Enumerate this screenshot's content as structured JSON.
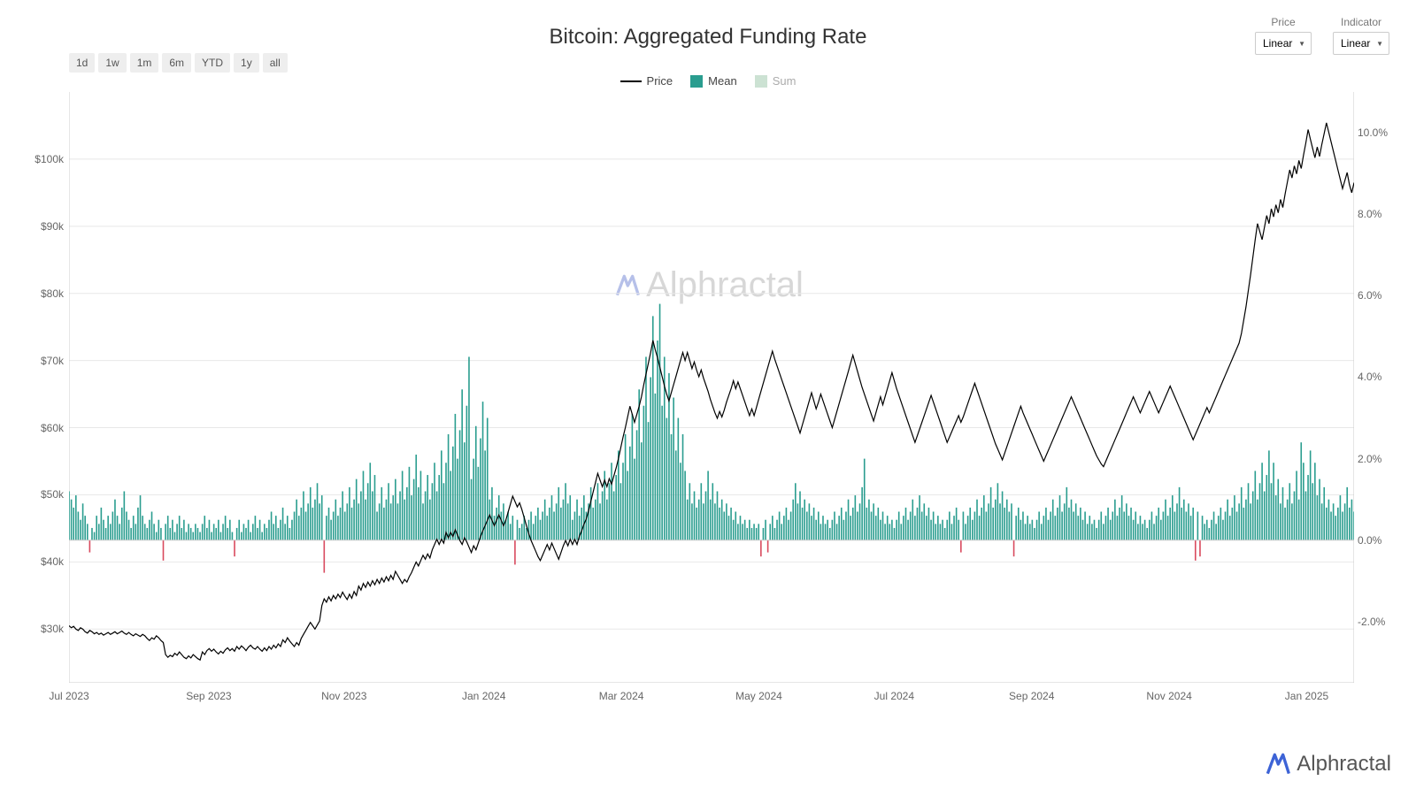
{
  "title": "Bitcoin: Aggregated Funding Rate",
  "controls": {
    "price_label": "Price",
    "indicator_label": "Indicator",
    "price_value": "Linear",
    "indicator_value": "Linear"
  },
  "range_buttons": [
    "1d",
    "1w",
    "1m",
    "6m",
    "YTD",
    "1y",
    "all"
  ],
  "legend": {
    "price": "Price",
    "mean": "Mean",
    "sum": "Sum"
  },
  "colors": {
    "price_line": "#000000",
    "mean_bar": "#2a9d8f",
    "sum_bar": "#8fbf9f",
    "neg_bar": "#d94a5e",
    "grid": "#e8e8e8",
    "axis": "#cccccc",
    "background": "#ffffff",
    "title_color": "#333333",
    "label_color": "#666666",
    "btn_bg": "#eeeeee",
    "watermark": "#b8b8b8",
    "logo_accent": "#3d63d6"
  },
  "chart": {
    "type": "combo-line-bar",
    "xlim": [
      0,
      570
    ],
    "x_tick_positions": [
      0,
      62,
      122,
      184,
      245,
      306,
      366,
      427,
      488,
      549
    ],
    "x_tick_labels": [
      "Jul 2023",
      "Sep 2023",
      "Nov 2023",
      "Jan 2024",
      "Mar 2024",
      "May 2024",
      "Jul 2024",
      "Sep 2024",
      "Nov 2024",
      "Jan 2025"
    ],
    "price": {
      "ylim": [
        22000,
        110000
      ],
      "ticks": [
        30000,
        40000,
        50000,
        60000,
        70000,
        80000,
        90000,
        100000
      ],
      "tick_labels": [
        "$30k",
        "$40k",
        "$50k",
        "$60k",
        "$70k",
        "$80k",
        "$90k",
        "$100k"
      ],
      "line_width": 1.2,
      "series": [
        30500,
        30200,
        30400,
        30000,
        29800,
        30200,
        30000,
        29600,
        29400,
        29800,
        29600,
        29300,
        29500,
        29200,
        29400,
        29100,
        29300,
        29500,
        29200,
        29400,
        29600,
        29300,
        29500,
        29700,
        29400,
        29200,
        29500,
        29200,
        29000,
        29300,
        29100,
        28900,
        29200,
        29000,
        28600,
        28300,
        28700,
        28500,
        29000,
        28700,
        28300,
        28000,
        26200,
        25800,
        26100,
        25900,
        26400,
        26100,
        26600,
        26200,
        25800,
        25600,
        26000,
        25700,
        26200,
        25900,
        25600,
        25400,
        26600,
        26200,
        26800,
        27100,
        26700,
        27000,
        26600,
        26300,
        26700,
        26400,
        26900,
        27200,
        26800,
        27100,
        26700,
        27400,
        27000,
        27500,
        27200,
        26800,
        27300,
        27600,
        27200,
        27000,
        27400,
        27000,
        26700,
        27200,
        26800,
        27400,
        27000,
        27600,
        27200,
        27800,
        27400,
        28400,
        28000,
        28700,
        28200,
        27800,
        27400,
        28000,
        27600,
        28600,
        29200,
        29800,
        30400,
        31000,
        30500,
        30000,
        30600,
        31200,
        33500,
        34500,
        34000,
        34800,
        34200,
        35000,
        34500,
        35200,
        34700,
        35500,
        34900,
        34400,
        35200,
        34600,
        35600,
        35000,
        36400,
        35800,
        36800,
        36200,
        37000,
        36400,
        37200,
        36600,
        37400,
        36800,
        37600,
        37000,
        37800,
        37200,
        38000,
        37400,
        38600,
        38000,
        37400,
        36800,
        37400,
        37000,
        37800,
        38400,
        39200,
        40000,
        39400,
        40200,
        41000,
        40400,
        41200,
        40600,
        41800,
        42600,
        43400,
        42600,
        43400,
        42800,
        44400,
        43600,
        44400,
        43800,
        44800,
        44000,
        43200,
        42600,
        43600,
        43000,
        42200,
        41400,
        42400,
        41800,
        42800,
        43800,
        44600,
        45400,
        46200,
        47000,
        46200,
        45400,
        46200,
        47000,
        46200,
        45400,
        46200,
        47400,
        48600,
        49800,
        49000,
        48200,
        48800,
        47800,
        46600,
        45400,
        44200,
        43200,
        42400,
        41600,
        40800,
        40200,
        41000,
        41800,
        42600,
        41800,
        42800,
        42000,
        41200,
        40400,
        41400,
        42400,
        43200,
        42400,
        43400,
        42600,
        43400,
        42600,
        43800,
        44600,
        45600,
        46400,
        47600,
        49000,
        50400,
        51800,
        53200,
        52200,
        51200,
        52200,
        51200,
        52400,
        51600,
        52800,
        54000,
        55400,
        57000,
        58600,
        60000,
        61600,
        63200,
        62000,
        60800,
        62000,
        63200,
        64600,
        66400,
        68000,
        69600,
        71200,
        73000,
        71600,
        70400,
        69000,
        67600,
        66200,
        65000,
        64000,
        65200,
        66400,
        67600,
        68800,
        70000,
        71200,
        70000,
        71200,
        70000,
        68800,
        69800,
        68600,
        67600,
        68600,
        67400,
        66400,
        65400,
        64200,
        63200,
        62200,
        61400,
        62400,
        61600,
        62600,
        63800,
        64800,
        65800,
        67000,
        65800,
        66800,
        65800,
        64800,
        63800,
        62800,
        61800,
        62800,
        61800,
        63000,
        64200,
        65400,
        66600,
        67800,
        69000,
        70200,
        71400,
        70200,
        69200,
        68200,
        67200,
        66200,
        65200,
        64200,
        63200,
        62200,
        61200,
        60200,
        59200,
        60400,
        61600,
        62800,
        64000,
        65200,
        64000,
        62800,
        63800,
        65000,
        64000,
        63000,
        62000,
        61000,
        60000,
        61200,
        62400,
        63600,
        64800,
        66000,
        67200,
        68400,
        69600,
        70800,
        69600,
        68400,
        67200,
        66000,
        65000,
        64000,
        63000,
        62000,
        61000,
        62200,
        63400,
        64600,
        63400,
        64600,
        65800,
        67000,
        68200,
        67000,
        65800,
        64800,
        63800,
        62800,
        61800,
        60800,
        59800,
        58800,
        57800,
        58800,
        59800,
        60800,
        61800,
        62800,
        63800,
        64800,
        63800,
        62800,
        61800,
        60800,
        59800,
        58800,
        57800,
        58600,
        59400,
        60200,
        61000,
        61800,
        60800,
        61600,
        62600,
        63600,
        64600,
        65600,
        66600,
        65600,
        64600,
        63600,
        62600,
        61600,
        60600,
        59600,
        58600,
        57600,
        56800,
        56000,
        55200,
        56200,
        57200,
        58200,
        59200,
        60200,
        61200,
        62200,
        63200,
        62200,
        61400,
        60600,
        59800,
        59000,
        58200,
        57400,
        56600,
        55800,
        55000,
        55800,
        56600,
        57400,
        58200,
        59000,
        59800,
        60600,
        61400,
        62200,
        63000,
        63800,
        64600,
        63800,
        63000,
        62200,
        61400,
        60600,
        59800,
        59000,
        58200,
        57400,
        56600,
        55800,
        55200,
        54600,
        54200,
        55000,
        55800,
        56600,
        57400,
        58200,
        59000,
        59800,
        60600,
        61400,
        62200,
        63000,
        63800,
        64600,
        63800,
        63000,
        62200,
        63000,
        63800,
        64600,
        65400,
        64600,
        63800,
        63000,
        62200,
        63000,
        63800,
        64600,
        65400,
        66200,
        65400,
        64600,
        63800,
        63000,
        62200,
        61400,
        60600,
        59800,
        59000,
        58200,
        59000,
        59800,
        60600,
        61400,
        62200,
        63000,
        62200,
        63000,
        63800,
        64600,
        65400,
        66200,
        67000,
        67800,
        68600,
        69400,
        70200,
        71000,
        71800,
        72600,
        74000,
        76000,
        78000,
        80400,
        82800,
        85400,
        88000,
        90400,
        89200,
        88000,
        89800,
        91600,
        90400,
        92600,
        91400,
        93200,
        92000,
        94000,
        92800,
        94800,
        96600,
        98400,
        97200,
        99000,
        97800,
        99800,
        98600,
        100600,
        102400,
        104400,
        103000,
        101600,
        100200,
        101800,
        100400,
        102200,
        103800,
        105400,
        104000,
        102600,
        101200,
        99800,
        98400,
        97000,
        95600,
        96800,
        98000,
        96200,
        95000,
        96500
      ]
    },
    "indicator": {
      "ylim": [
        -3.5,
        11.0
      ],
      "ticks": [
        -2,
        0,
        2,
        4,
        6,
        8,
        10
      ],
      "tick_labels": [
        "-2.0%",
        "0.0%",
        "2.0%",
        "4.0%",
        "6.0%",
        "8.0%",
        "10.0%"
      ],
      "bar_width": 1.6,
      "series": [
        1.2,
        1.0,
        0.8,
        1.1,
        0.7,
        0.5,
        0.9,
        0.6,
        0.4,
        -0.3,
        0.3,
        0.2,
        0.6,
        0.4,
        0.8,
        0.5,
        0.3,
        0.6,
        0.4,
        0.7,
        1.0,
        0.6,
        0.4,
        0.8,
        1.2,
        0.7,
        0.5,
        0.3,
        0.6,
        0.4,
        0.8,
        1.1,
        0.6,
        0.4,
        0.3,
        0.5,
        0.7,
        0.4,
        0.2,
        0.5,
        0.3,
        -0.5,
        0.4,
        0.6,
        0.3,
        0.5,
        0.2,
        0.4,
        0.6,
        0.3,
        0.5,
        0.2,
        0.4,
        0.3,
        0.2,
        0.4,
        0.3,
        0.2,
        0.4,
        0.6,
        0.3,
        0.5,
        0.2,
        0.4,
        0.3,
        0.5,
        0.2,
        0.4,
        0.6,
        0.3,
        0.5,
        0.2,
        -0.4,
        0.3,
        0.5,
        0.2,
        0.4,
        0.3,
        0.5,
        0.2,
        0.4,
        0.6,
        0.3,
        0.5,
        0.2,
        0.4,
        0.3,
        0.5,
        0.7,
        0.4,
        0.6,
        0.3,
        0.5,
        0.8,
        0.4,
        0.6,
        0.3,
        0.5,
        0.7,
        1.0,
        0.6,
        0.8,
        1.2,
        0.7,
        0.9,
        1.3,
        0.8,
        1.0,
        1.4,
        0.9,
        1.1,
        -0.8,
        0.6,
        0.8,
        0.5,
        0.7,
        1.0,
        0.6,
        0.8,
        1.2,
        0.7,
        0.9,
        1.3,
        0.8,
        1.0,
        1.5,
        0.9,
        1.2,
        1.7,
        1.0,
        1.4,
        1.9,
        1.2,
        1.6,
        0.7,
        0.9,
        1.3,
        0.8,
        1.0,
        1.4,
        0.9,
        1.1,
        1.5,
        0.9,
        1.2,
        1.7,
        1.0,
        1.3,
        1.8,
        1.1,
        1.5,
        2.1,
        1.3,
        1.7,
        0.9,
        1.2,
        1.6,
        1.0,
        1.4,
        1.9,
        1.2,
        1.6,
        2.2,
        1.4,
        1.9,
        2.6,
        1.7,
        2.3,
        3.1,
        2.0,
        2.7,
        3.7,
        2.4,
        3.3,
        4.5,
        1.5,
        2.0,
        2.8,
        1.8,
        2.5,
        3.4,
        2.2,
        3.0,
        1.0,
        1.3,
        0.6,
        0.8,
        1.1,
        0.7,
        0.9,
        0.5,
        0.7,
        0.4,
        0.6,
        -0.6,
        0.5,
        0.3,
        0.4,
        0.6,
        0.3,
        0.5,
        0.7,
        0.4,
        0.6,
        0.8,
        0.5,
        0.7,
        1.0,
        0.6,
        0.8,
        1.1,
        0.7,
        0.9,
        1.3,
        0.8,
        1.0,
        1.4,
        0.9,
        1.1,
        0.5,
        0.7,
        1.0,
        0.6,
        0.8,
        1.1,
        0.7,
        0.9,
        1.3,
        0.8,
        1.0,
        1.4,
        0.9,
        1.2,
        1.7,
        1.0,
        1.4,
        1.9,
        1.2,
        1.6,
        2.2,
        1.4,
        1.9,
        2.6,
        1.7,
        2.3,
        3.1,
        2.0,
        2.7,
        3.7,
        2.4,
        3.3,
        4.5,
        2.9,
        4.0,
        5.5,
        3.6,
        4.9,
        5.8,
        3.3,
        4.5,
        3.0,
        4.1,
        2.6,
        3.5,
        2.2,
        3.0,
        1.9,
        2.6,
        1.7,
        1.0,
        1.4,
        0.9,
        1.2,
        0.8,
        1.0,
        1.4,
        0.9,
        1.2,
        1.7,
        1.0,
        1.4,
        0.9,
        1.2,
        0.8,
        1.0,
        0.7,
        0.9,
        0.6,
        0.8,
        0.5,
        0.7,
        0.4,
        0.6,
        0.4,
        0.5,
        0.3,
        0.5,
        0.3,
        0.4,
        0.3,
        0.4,
        -0.4,
        0.3,
        0.5,
        -0.3,
        0.4,
        0.6,
        0.3,
        0.5,
        0.7,
        0.4,
        0.6,
        0.8,
        0.5,
        0.7,
        1.0,
        1.4,
        0.9,
        1.2,
        0.8,
        1.0,
        0.7,
        0.9,
        0.6,
        0.8,
        0.5,
        0.7,
        0.4,
        0.6,
        0.4,
        0.5,
        0.3,
        0.5,
        0.7,
        0.4,
        0.6,
        0.8,
        0.5,
        0.7,
        1.0,
        0.6,
        0.8,
        1.1,
        0.7,
        0.9,
        1.3,
        2.0,
        0.8,
        1.0,
        0.7,
        0.9,
        0.6,
        0.8,
        0.5,
        0.7,
        0.4,
        0.6,
        0.4,
        0.5,
        0.3,
        0.5,
        0.7,
        0.4,
        0.6,
        0.8,
        0.5,
        0.7,
        1.0,
        0.6,
        0.8,
        1.1,
        0.7,
        0.9,
        0.6,
        0.8,
        0.5,
        0.7,
        0.4,
        0.6,
        0.4,
        0.5,
        0.3,
        0.5,
        0.7,
        0.4,
        0.6,
        0.8,
        0.5,
        -0.3,
        0.7,
        0.4,
        0.6,
        0.8,
        0.5,
        0.7,
        1.0,
        0.6,
        0.8,
        1.1,
        0.7,
        0.9,
        1.3,
        0.8,
        1.0,
        1.4,
        0.9,
        1.2,
        0.8,
        1.0,
        0.7,
        0.9,
        -0.4,
        0.6,
        0.8,
        0.5,
        0.7,
        0.4,
        0.6,
        0.4,
        0.5,
        0.3,
        0.5,
        0.7,
        0.4,
        0.6,
        0.8,
        0.5,
        0.7,
        1.0,
        0.6,
        0.8,
        1.1,
        0.7,
        0.9,
        1.3,
        0.8,
        1.0,
        0.7,
        0.9,
        0.6,
        0.8,
        0.5,
        0.7,
        0.4,
        0.6,
        0.4,
        0.5,
        0.3,
        0.5,
        0.7,
        0.4,
        0.6,
        0.8,
        0.5,
        0.7,
        1.0,
        0.6,
        0.8,
        1.1,
        0.7,
        0.9,
        0.6,
        0.8,
        0.5,
        0.7,
        0.4,
        0.6,
        0.4,
        0.5,
        0.3,
        0.5,
        0.7,
        0.4,
        0.6,
        0.8,
        0.5,
        0.7,
        1.0,
        0.6,
        0.8,
        1.1,
        0.7,
        0.9,
        1.3,
        0.8,
        1.0,
        0.7,
        0.9,
        0.6,
        0.8,
        -0.5,
        0.7,
        -0.4,
        0.6,
        0.4,
        0.5,
        0.3,
        0.5,
        0.7,
        0.4,
        0.6,
        0.8,
        0.5,
        0.7,
        1.0,
        0.6,
        0.8,
        1.1,
        0.7,
        0.9,
        1.3,
        0.8,
        1.0,
        1.4,
        0.9,
        1.2,
        1.7,
        1.0,
        1.4,
        1.9,
        1.2,
        1.6,
        2.2,
        1.4,
        1.9,
        1.1,
        1.5,
        0.9,
        1.3,
        0.8,
        1.0,
        1.4,
        0.9,
        1.2,
        1.7,
        1.0,
        2.4,
        1.9,
        1.2,
        1.6,
        2.2,
        1.4,
        1.9,
        1.1,
        1.5,
        0.9,
        1.3,
        0.8,
        1.0,
        0.7,
        0.9,
        0.6,
        0.8,
        1.1,
        0.7,
        0.9,
        1.3,
        0.8,
        1.0,
        0.7
      ]
    }
  },
  "watermark_text": "Alphractal",
  "brand_text": "Alphractal"
}
